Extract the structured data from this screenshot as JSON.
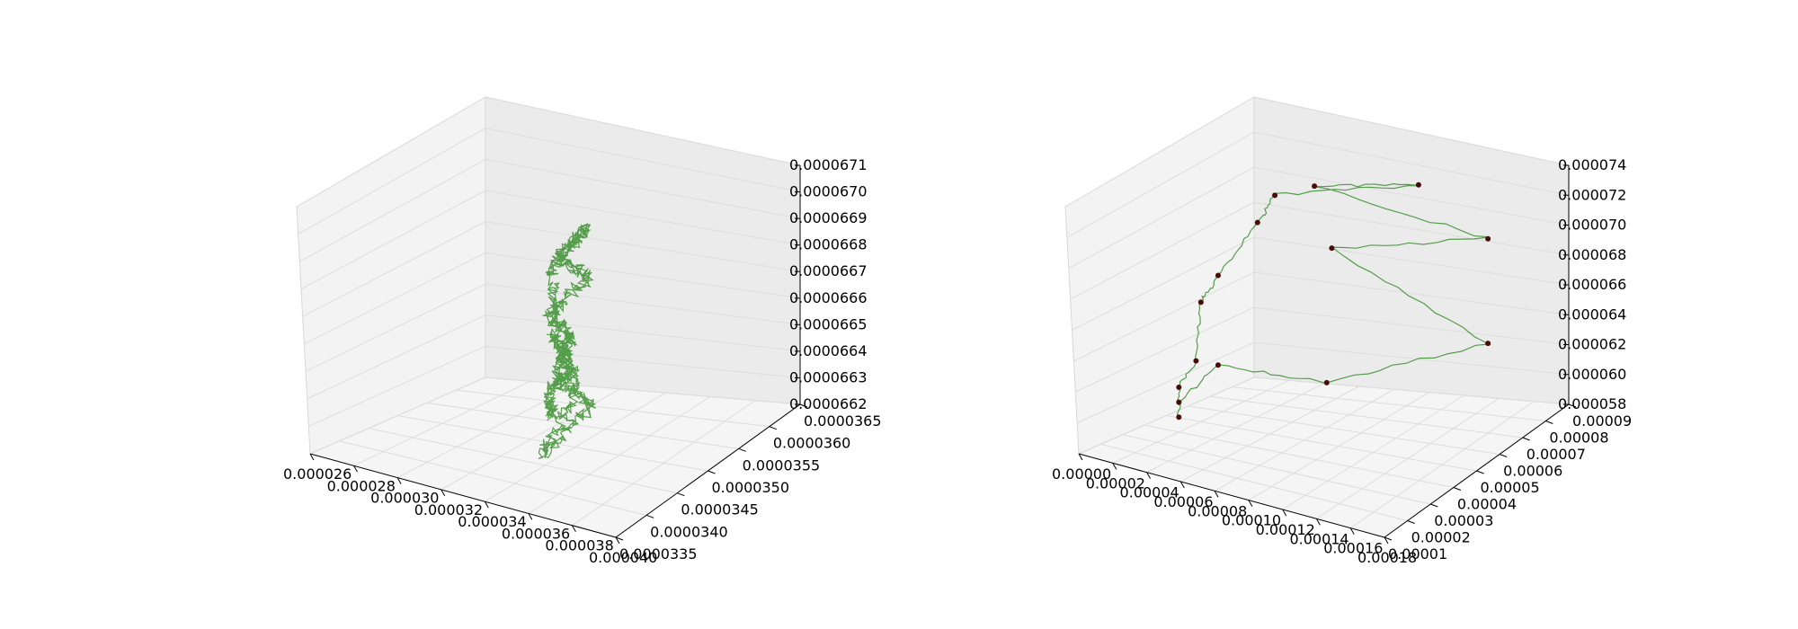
{
  "chart_data": [
    {
      "type": "line3d",
      "title": "",
      "line_color": "#3a8f2e",
      "grid": true,
      "pane_color": "#f2f2f2",
      "x_ticks": [
        "0.000026",
        "0.000028",
        "0.000030",
        "0.000032",
        "0.000034",
        "0.000036",
        "0.000038",
        "0.000040"
      ],
      "y_ticks": [
        "0.0000335",
        "0.0000340",
        "0.0000345",
        "0.0000350",
        "0.0000355",
        "0.0000360",
        "0.0000365"
      ],
      "z_ticks": [
        "0.0000662",
        "0.0000663",
        "0.0000664",
        "0.0000665",
        "0.0000666",
        "0.0000667",
        "0.0000668",
        "0.0000669",
        "0.0000670",
        "0.0000671"
      ],
      "xlim": [
        2.6e-05,
        4e-05
      ],
      "ylim": [
        3.35e-05,
        3.65e-05
      ],
      "zlim": [
        6.62e-05,
        6.71e-05
      ],
      "series": [
        {
          "points": [
            [
              3.3e-05,
              3.5e-05,
              6.63e-05
            ],
            [
              3.34e-05,
              3.48e-05,
              6.64e-05
            ],
            [
              3.29e-05,
              3.52e-05,
              6.65e-05
            ],
            [
              3.36e-05,
              3.51e-05,
              6.66e-05
            ],
            [
              3.31e-05,
              3.49e-05,
              6.67e-05
            ],
            [
              3.38e-05,
              3.53e-05,
              6.68e-05
            ],
            [
              3.32e-05,
              3.5e-05,
              6.69e-05
            ],
            [
              3.4e-05,
              3.52e-05,
              6.7e-05
            ],
            [
              3.35e-05,
              3.48e-05,
              6.69e-05
            ],
            [
              3.28e-05,
              3.51e-05,
              6.66e-05
            ],
            [
              3.42e-05,
              3.49e-05,
              6.65e-05
            ],
            [
              3.26e-05,
              3.52e-05,
              6.64e-05
            ],
            [
              3.37e-05,
              3.54e-05,
              6.63e-05
            ],
            [
              3.33e-05,
              3.47e-05,
              6.62e-05
            ],
            [
              3.39e-05,
              3.51e-05,
              6.64e-05
            ],
            [
              3.3e-05,
              3.5e-05,
              6.66e-05
            ]
          ]
        }
      ]
    },
    {
      "type": "line3d",
      "title": "",
      "line_color": "#3a8f2e",
      "marker_color": "#4a0a0a",
      "grid": true,
      "pane_color": "#f2f2f2",
      "x_ticks": [
        "0.00000",
        "0.00002",
        "0.00004",
        "0.00006",
        "0.00008",
        "0.00010",
        "0.00012",
        "0.00014",
        "0.00016",
        "0.00018"
      ],
      "y_ticks": [
        "0.00001",
        "0.00002",
        "0.00003",
        "0.00004",
        "0.00005",
        "0.00006",
        "0.00007",
        "0.00008",
        "0.00009"
      ],
      "z_ticks": [
        "0.000058",
        "0.000060",
        "0.000062",
        "0.000064",
        "0.000066",
        "0.000068",
        "0.000070",
        "0.000072",
        "0.000074"
      ],
      "xlim": [
        0.0,
        0.00018
      ],
      "ylim": [
        1e-05,
        9e-05
      ],
      "zlim": [
        5.8e-05,
        7.4e-05
      ],
      "series": [
        {
          "points": [
            [
              2e-05,
              4e-05,
              5.9e-05
            ],
            [
              2e-05,
              4e-05,
              6.1e-05
            ],
            [
              3e-05,
              4e-05,
              6.3e-05
            ],
            [
              2e-05,
              5e-05,
              6.6e-05
            ],
            [
              3e-05,
              5e-05,
              6.8e-05
            ],
            [
              4e-05,
              6e-05,
              7.1e-05
            ],
            [
              5e-05,
              6e-05,
              7.3e-05
            ],
            [
              0.00012,
              7e-05,
              7.4e-05
            ],
            [
              6e-05,
              7e-05,
              7.3e-05
            ],
            [
              0.00016,
              7e-05,
              7.1e-05
            ],
            [
              7e-05,
              7e-05,
              6.9e-05
            ],
            [
              0.00016,
              7e-05,
              6.4e-05
            ],
            [
              8e-05,
              6e-05,
              6.1e-05
            ],
            [
              3e-05,
              5e-05,
              6.2e-05
            ],
            [
              2e-05,
              4e-05,
              6e-05
            ]
          ]
        }
      ]
    }
  ]
}
